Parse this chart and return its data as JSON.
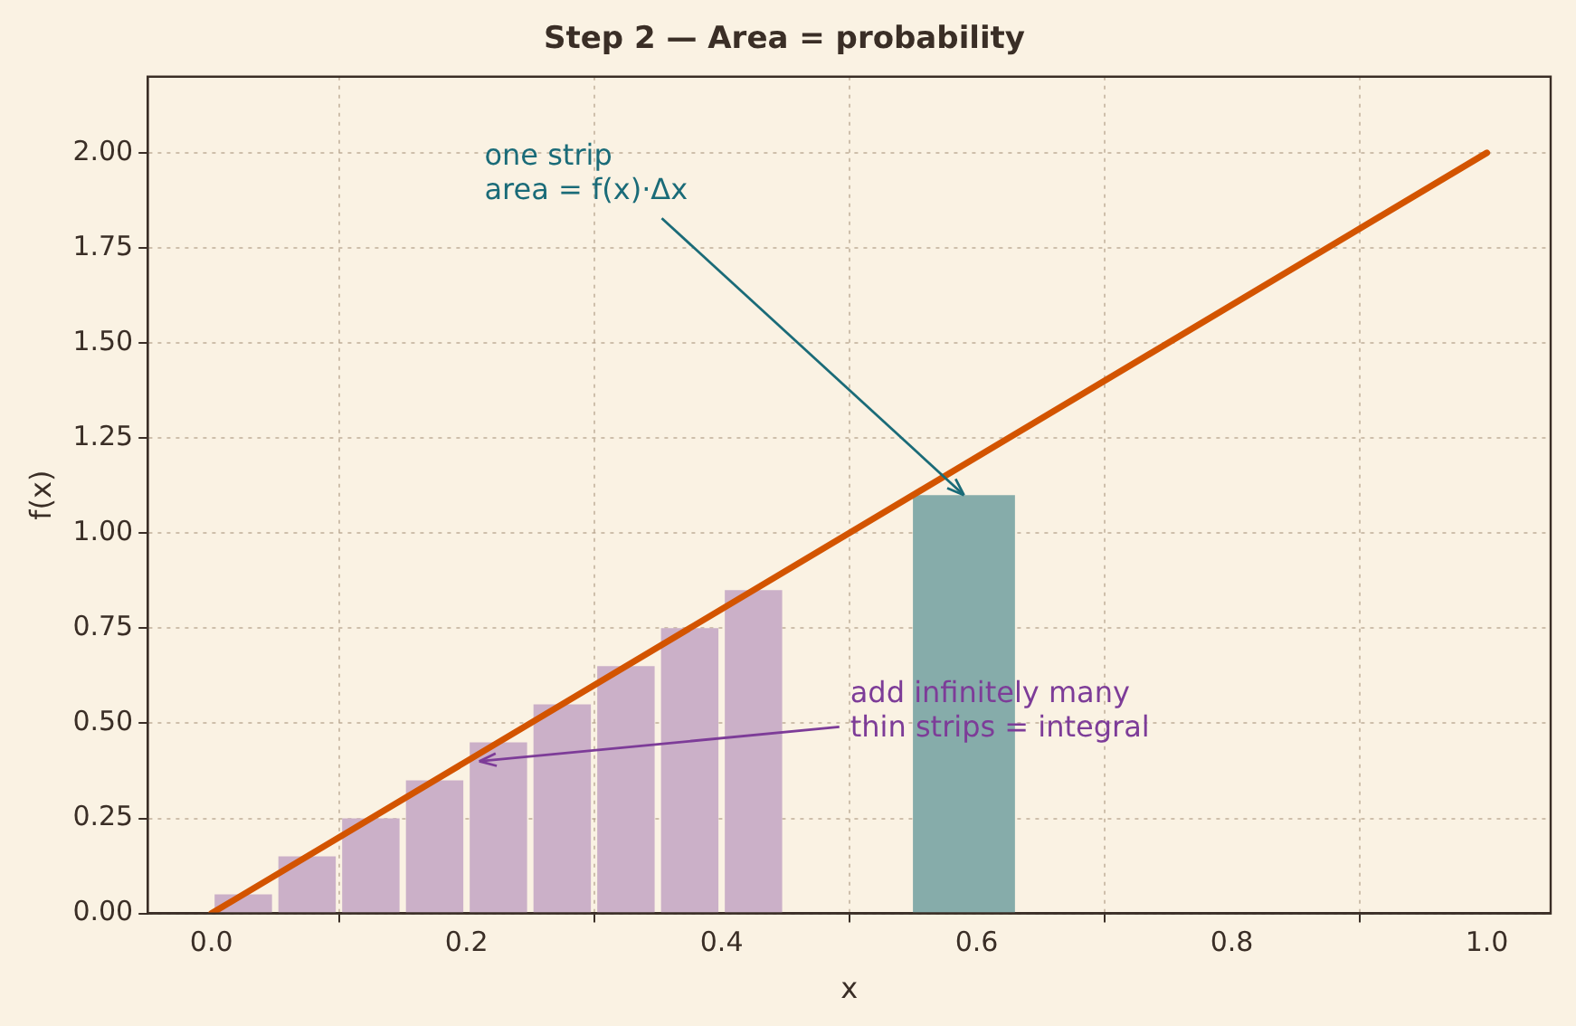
{
  "chart_data": {
    "type": "histogram",
    "title": "Step 2 — Area = probability",
    "xlabel": "x",
    "ylabel": "f(x)",
    "series": [
      {
        "type": "histogram",
        "color": "#cbb0c8",
        "bins": [
          0,
          0.05,
          0.1,
          0.15,
          0.2,
          0.25,
          0.3,
          0.35,
          0.4,
          0.45
        ],
        "values": [
          0.05,
          0.15,
          0.25,
          0.35,
          0.45,
          0.55,
          0.65,
          0.75,
          0.85
        ]
      },
      {
        "type": "histogram",
        "color": "#86acaa",
        "bins": [
          0.55,
          0.63
        ],
        "values": [
          1.1
        ]
      },
      {
        "type": "line",
        "color": "#d35400",
        "x": [
          0,
          1
        ],
        "values": [
          0,
          2
        ]
      }
    ],
    "xlim": [
      -0.05,
      1.05
    ],
    "xticks": [
      {
        "value": 0,
        "label": "0.0"
      },
      {
        "value": 0.2,
        "label": "0.2"
      },
      {
        "value": 0.4,
        "label": "0.4"
      },
      {
        "value": 0.6,
        "label": "0.6"
      },
      {
        "value": 0.8,
        "label": "0.8"
      },
      {
        "value": 1,
        "label": "1.0"
      }
    ],
    "ylim": [
      0,
      2.2
    ],
    "yticks": [
      {
        "value": 0,
        "label": "0.00"
      },
      {
        "value": 0.25,
        "label": "0.25"
      },
      {
        "value": 0.5,
        "label": "0.50"
      },
      {
        "value": 0.75,
        "label": "0.75"
      },
      {
        "value": 1,
        "label": "1.00"
      },
      {
        "value": 1.25,
        "label": "1.25"
      },
      {
        "value": 1.5,
        "label": "1.50"
      },
      {
        "value": 1.75,
        "label": "1.75"
      },
      {
        "value": 2,
        "label": "2.00"
      }
    ],
    "annotations": [
      {
        "text": "one strip\narea = f(x)·Δx",
        "x": 0.59,
        "y": 1.1
      },
      {
        "text": "add infinitely many\nthin strips = integral",
        "x": 0.21,
        "y": 0.4
      }
    ],
    "grid": true,
    "legend": false
  }
}
